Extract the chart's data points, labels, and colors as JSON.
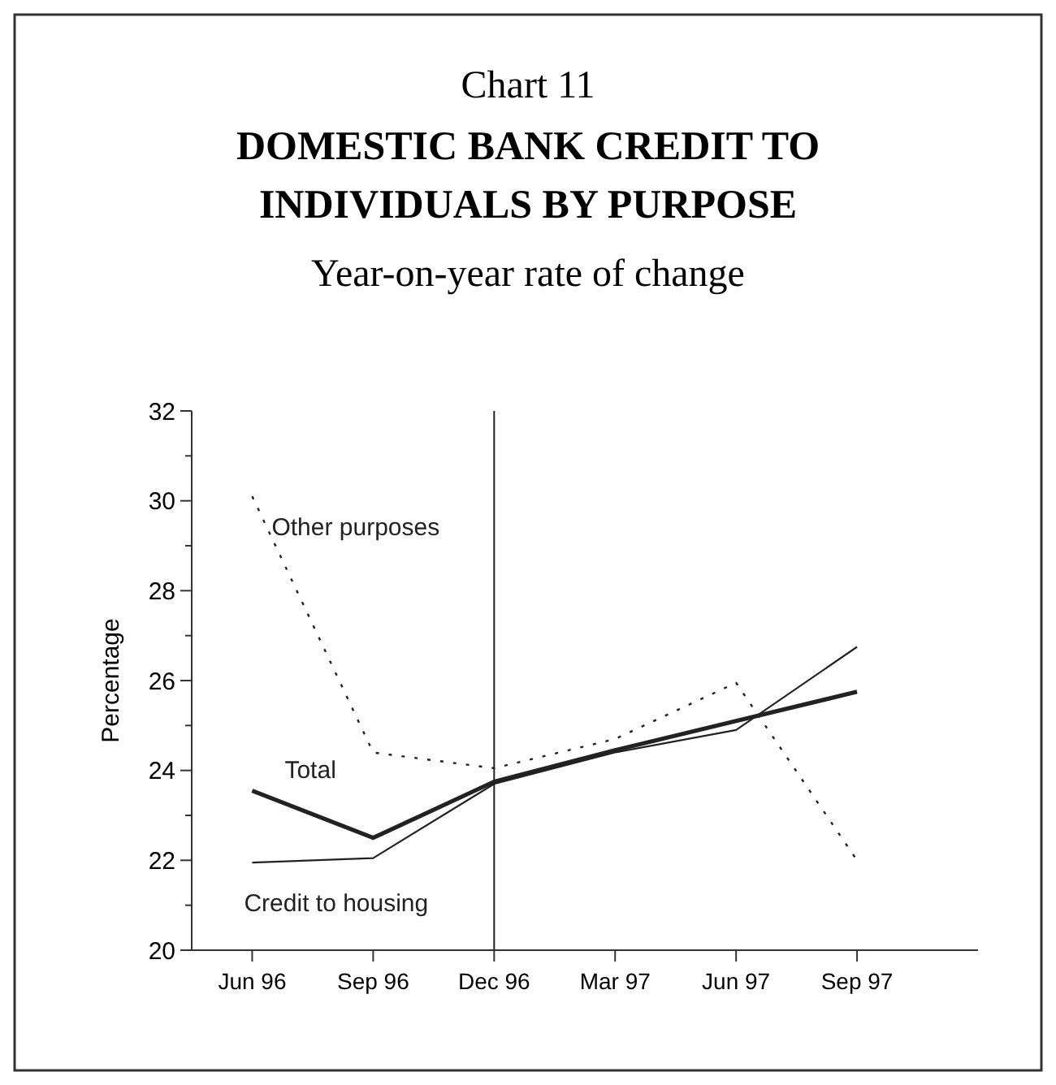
{
  "chart_data": {
    "type": "line",
    "title": "Chart 11",
    "subtitle": "DOMESTIC BANK CREDIT TO INDIVIDUALS BY PURPOSE",
    "annotations": [
      "Year-on-year rate of change"
    ],
    "ylabel": "Percentage",
    "categories": [
      "Jun 96",
      "Sep 96",
      "Dec 96",
      "Mar 97",
      "Jun 97",
      "Sep 97"
    ],
    "series": [
      {
        "name": "Other purposes",
        "color": "#222222",
        "line_style": "dotted",
        "values": [
          30.1,
          24.4,
          24.05,
          24.7,
          25.95,
          22.0
        ]
      },
      {
        "name": "Total",
        "color": "#222222",
        "line_style": "solid",
        "values": [
          23.55,
          22.5,
          23.75,
          24.45,
          25.1,
          25.75
        ]
      },
      {
        "name": "Credit to housing",
        "color": "#222222",
        "line_style": "solid",
        "values": [
          21.95,
          22.05,
          23.7,
          24.4,
          24.9,
          26.75
        ]
      }
    ],
    "ylim": [
      20,
      32
    ],
    "yticks": [
      20,
      {
        "value": 21,
        "label": null
      },
      22,
      {
        "value": 23,
        "label": null
      },
      24,
      {
        "value": 25,
        "label": null
      },
      26,
      {
        "value": 27,
        "label": null
      },
      28,
      {
        "value": 29,
        "label": null
      },
      30,
      {
        "value": 31,
        "label": null
      },
      32
    ],
    "ref_lines": [
      {
        "axis": "x",
        "value": "Dec 96",
        "color": "#222222"
      }
    ],
    "grid": false
  }
}
